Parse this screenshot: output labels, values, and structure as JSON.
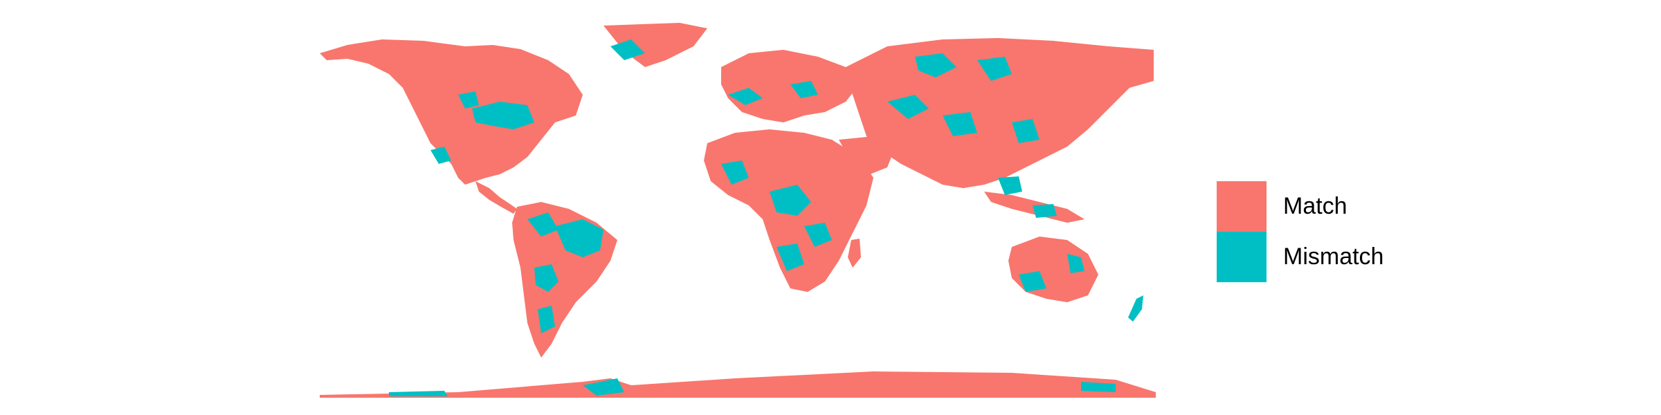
{
  "legend": {
    "items": [
      {
        "label": "Match",
        "color": "#F8766D"
      },
      {
        "label": "Mismatch",
        "color": "#00BFC4"
      }
    ]
  },
  "colors": {
    "match": "#F8766D",
    "mismatch": "#00BFC4",
    "background": "#FFFFFF"
  },
  "map": {
    "projection": "equirectangular",
    "extent": {
      "lon": [
        -180,
        180
      ],
      "lat": [
        -90,
        84
      ]
    }
  }
}
